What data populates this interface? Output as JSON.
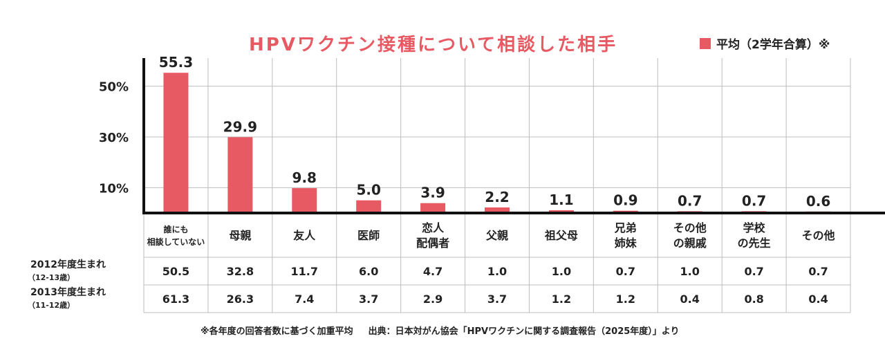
{
  "title": "HPVワクチン接種について相談した相手",
  "legend": {
    "label": "平均（2学年合算）※",
    "color": "#e85a63"
  },
  "chart_data": {
    "type": "bar",
    "title": "HPVワクチン接種について相談した相手",
    "unit": "%",
    "ylim": [
      0,
      60
    ],
    "yticks": [
      10,
      30,
      50
    ],
    "ytick_labels": [
      "10%",
      "30%",
      "50%"
    ],
    "grid": true,
    "categories": [
      [
        "誰にも",
        "相談していない"
      ],
      [
        "母親"
      ],
      [
        "友人"
      ],
      [
        "医師"
      ],
      [
        "恋人",
        "配偶者"
      ],
      [
        "父親"
      ],
      [
        "祖父母"
      ],
      [
        "兄弟",
        "姉妹"
      ],
      [
        "その他",
        "の親戚"
      ],
      [
        "学校",
        "の先生"
      ],
      [
        "その他"
      ]
    ],
    "series": [
      {
        "name": "平均（2学年合算）※",
        "values": [
          55.3,
          29.9,
          9.8,
          5.0,
          3.9,
          2.2,
          1.1,
          0.9,
          0.7,
          0.7,
          0.6
        ],
        "labels": [
          "55.3",
          "29.9",
          "9.8",
          "5.0",
          "3.9",
          "2.2",
          "1.1",
          "0.9",
          "0.7",
          "0.7",
          "0.6"
        ]
      }
    ],
    "table": [
      {
        "name": "2012年度生まれ",
        "sub": "（12-13歳）",
        "values": [
          "50.5",
          "32.8",
          "11.7",
          "6.0",
          "4.7",
          "1.0",
          "1.0",
          "0.7",
          "1.0",
          "0.7",
          "0.7"
        ]
      },
      {
        "name": "2013年度生まれ",
        "sub": "（11-12歳）",
        "values": [
          "61.3",
          "26.3",
          "7.4",
          "3.7",
          "2.9",
          "3.7",
          "1.2",
          "1.2",
          "0.4",
          "0.8",
          "0.4"
        ]
      }
    ]
  },
  "footnote": {
    "note": "※各年度の回答者数に基づく加重平均",
    "source": "出典：日本対がん協会「HPVワクチンに関する調査報告（2025年度）」より"
  }
}
